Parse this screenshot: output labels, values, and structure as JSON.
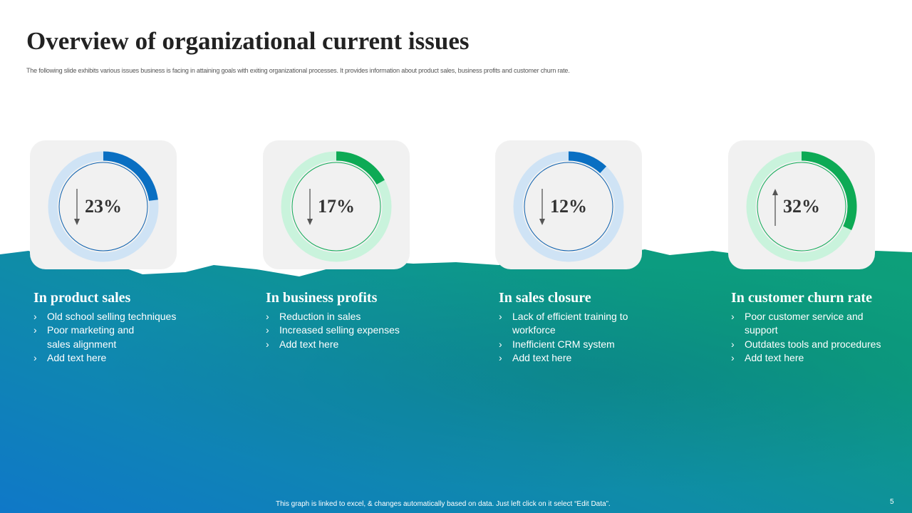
{
  "title": "Overview of organizational current issues",
  "subtitle": "The following slide exhibits various issues business is facing in attaining goals with exiting organizational processes. It provides information about product sales, business profits and customer churn rate.",
  "cards": [
    {
      "value": 23,
      "label": "23%",
      "trend": "down",
      "color": "#0a6fc2",
      "track": "#cfe3f5",
      "line": "#0a5fae",
      "heading": "In product sales",
      "bullets": [
        "Old school selling techniques",
        "Poor marketing and sales alignment",
        "Add text here"
      ]
    },
    {
      "value": 17,
      "label": "17%",
      "trend": "down",
      "color": "#0daa55",
      "track": "#c9f3dc",
      "line": "#0daa55",
      "heading": "In business profits",
      "bullets": [
        "Reduction in sales",
        "Increased selling expenses",
        "Add text here"
      ]
    },
    {
      "value": 12,
      "label": "12%",
      "trend": "down",
      "color": "#0a6fc2",
      "track": "#cfe3f5",
      "line": "#0a5fae",
      "heading": "In sales closure",
      "bullets": [
        "Lack of efficient training to workforce",
        "Inefficient CRM system",
        "Add text here"
      ]
    },
    {
      "value": 32,
      "label": "32%",
      "trend": "up",
      "color": "#0daa55",
      "track": "#c9f3dc",
      "line": "#0daa55",
      "heading": "In customer churn rate",
      "bullets": [
        "Poor customer service and support",
        "Outdates tools and procedures",
        "Add text here"
      ]
    }
  ],
  "footer": "This graph is linked to excel, & changes automatically based on data. Just left click on it select “Edit Data”.",
  "page_number": "5"
}
